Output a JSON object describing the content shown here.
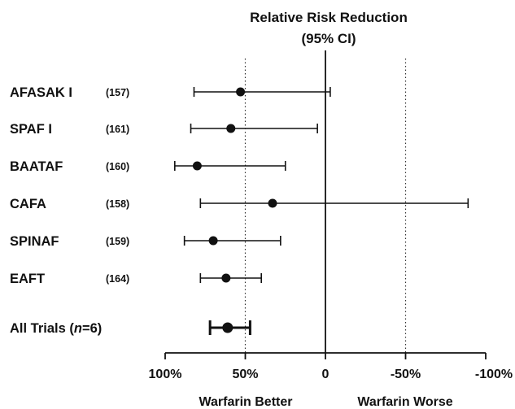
{
  "chart_data": {
    "type": "forest",
    "title": "Relative Risk Reduction",
    "subtitle": "(95% CI)",
    "x_axis": {
      "reversed": true,
      "xlim": [
        100,
        -100
      ],
      "ticks": [
        100,
        50,
        0,
        -50,
        -100
      ],
      "tick_labels": [
        "100%",
        "50%",
        "0",
        "-50%",
        "-100%"
      ],
      "reference_lines": [
        50,
        0,
        -50
      ],
      "left_label": "Warfarin Better",
      "right_label": "Warfarin Worse"
    },
    "rows": [
      {
        "study": "AFASAK I",
        "ref": "(157)",
        "rrr": 53,
        "ci_low": -3,
        "ci_high": 82
      },
      {
        "study": "SPAF I",
        "ref": "(161)",
        "rrr": 59,
        "ci_low": 5,
        "ci_high": 84
      },
      {
        "study": "BAATAF",
        "ref": "(160)",
        "rrr": 80,
        "ci_low": 25,
        "ci_high": 94
      },
      {
        "study": "CAFA",
        "ref": "(158)",
        "rrr": 33,
        "ci_low": -89,
        "ci_high": 78
      },
      {
        "study": "SPINAF",
        "ref": "(159)",
        "rrr": 70,
        "ci_low": 28,
        "ci_high": 88
      },
      {
        "study": "EAFT",
        "ref": "(164)",
        "rrr": 62,
        "ci_low": 40,
        "ci_high": 78
      },
      {
        "study": "All Trials (n=6)",
        "study_prefix": "All Trials (",
        "study_italic": "n",
        "study_suffix": "=6)",
        "ref": "",
        "rrr": 61,
        "ci_low": 47,
        "ci_high": 72,
        "pooled": true
      }
    ]
  }
}
